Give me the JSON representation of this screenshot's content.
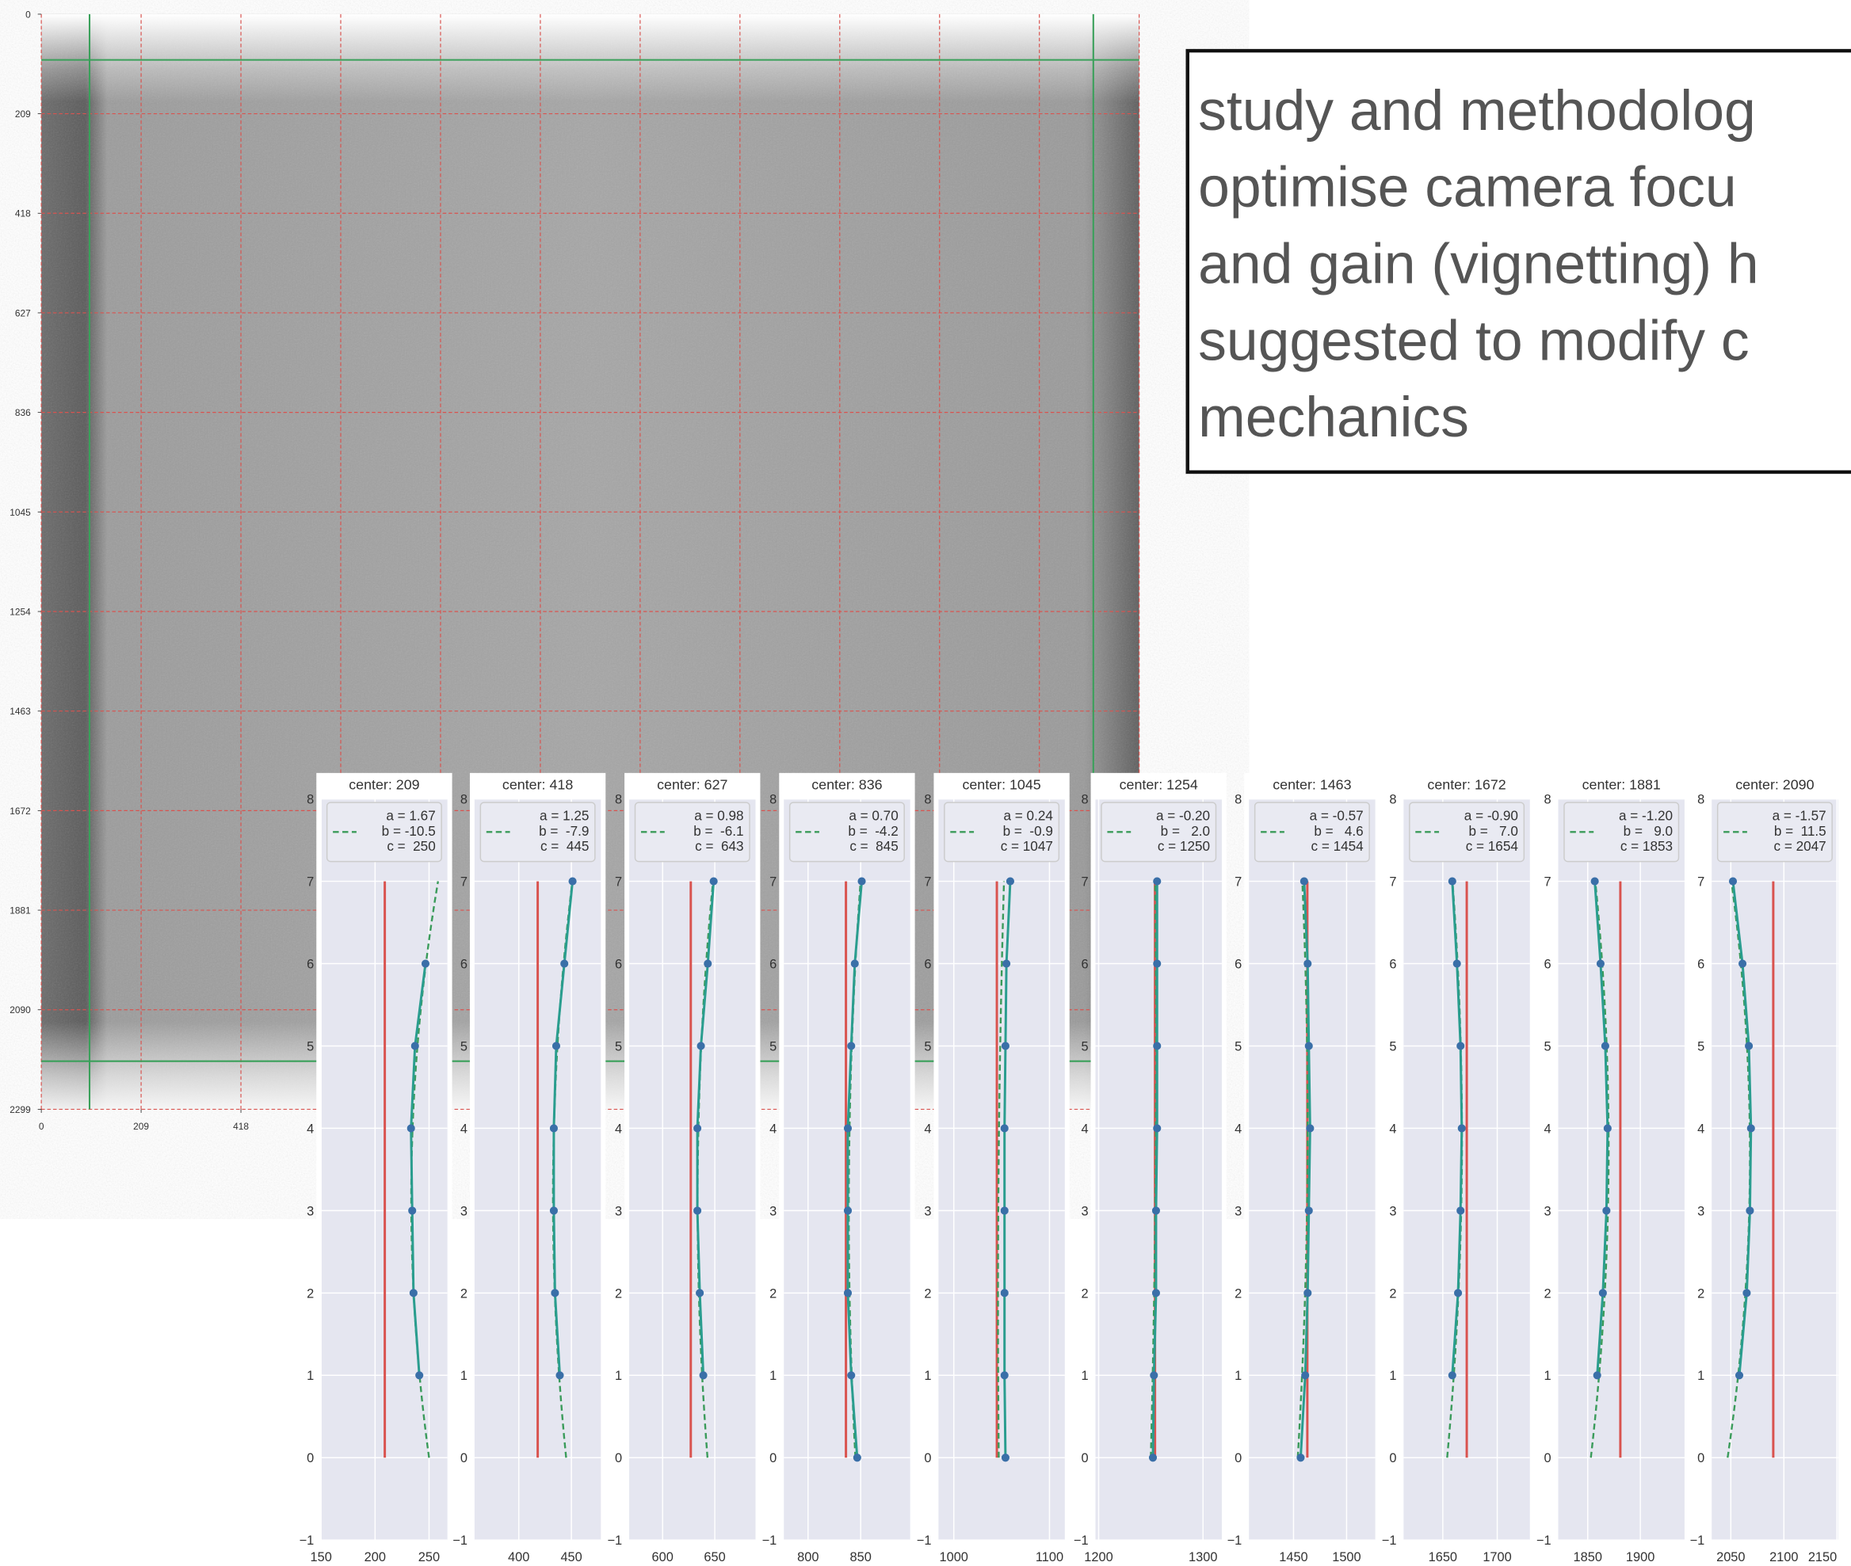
{
  "chart_data": [
    {
      "type": "image",
      "xlim": [
        0,
        2299
      ],
      "ylim": [
        0,
        2299
      ],
      "xticks": [
        0,
        209,
        418
      ],
      "yticks": [
        0,
        209,
        418,
        627,
        836,
        1045,
        1254,
        1463,
        1672,
        1881,
        2090,
        2299
      ],
      "gridlines": [
        209,
        418,
        627,
        836,
        1045,
        1254,
        1463,
        1672,
        1881,
        2090,
        2299
      ],
      "green_lines_x": [
        101,
        2203
      ],
      "green_lines_y": [
        96,
        2198
      ],
      "grid_color": "#d9534f",
      "guide_color": "#3aa05a"
    },
    {
      "type": "profile",
      "title": "center: 209",
      "center": 209,
      "y": [
        0,
        1,
        2,
        3,
        4,
        5,
        6,
        7
      ],
      "series": [
        {
          "color": "#3a6fa8",
          "line_color": "#2a9d8f",
          "values": [
            null,
            241,
            235.6,
            234.4,
            233.3,
            237,
            246.7,
            null
          ]
        }
      ],
      "fit": {
        "a": 1.67,
        "b": -10.5,
        "c": 250
      },
      "legend": [
        "a = 1.67",
        "b = -10.5",
        "c =  250"
      ],
      "xlim": [
        150,
        267
      ],
      "xticks": [
        150,
        200,
        250
      ],
      "ylim": [
        -1,
        8
      ],
      "yticks": [
        {
          "value": -1,
          "label": "−1"
        },
        0,
        1,
        2,
        3,
        4,
        5,
        6,
        7,
        8
      ]
    },
    {
      "type": "profile",
      "title": "center: 418",
      "center": 418,
      "y": [
        0,
        1,
        2,
        3,
        4,
        5,
        6,
        7
      ],
      "series": [
        {
          "color": "#3a6fa8",
          "line_color": "#2a9d8f",
          "values": [
            null,
            439,
            434.4,
            433.3,
            433.3,
            435.6,
            443.3,
            451.1
          ]
        }
      ],
      "fit": {
        "a": 1.25,
        "b": -7.9,
        "c": 445
      },
      "legend": [
        "a = 1.25",
        "b =  -7.9",
        "c =  445"
      ],
      "xlim": [
        358,
        478
      ],
      "xticks": [
        400,
        450
      ],
      "ylim": [
        -1,
        8
      ],
      "yticks": [
        {
          "value": -1,
          "label": "−1"
        },
        0,
        1,
        2,
        3,
        4,
        5,
        6,
        7,
        8
      ]
    },
    {
      "type": "profile",
      "title": "center: 627",
      "center": 627,
      "y": [
        0,
        1,
        2,
        3,
        4,
        5,
        6,
        7
      ],
      "series": [
        {
          "color": "#3a6fa8",
          "line_color": "#2a9d8f",
          "values": [
            null,
            639,
            635.6,
            633.3,
            633.3,
            636.7,
            643.3,
            648.9
          ]
        }
      ],
      "fit": {
        "a": 0.98,
        "b": -6.1,
        "c": 643
      },
      "legend": [
        "a = 0.98",
        "b =  -6.1",
        "c =  643"
      ],
      "xlim": [
        568,
        689
      ],
      "xticks": [
        600,
        650
      ],
      "ylim": [
        -1,
        8
      ],
      "yticks": [
        {
          "value": -1,
          "label": "−1"
        },
        0,
        1,
        2,
        3,
        4,
        5,
        6,
        7,
        8
      ]
    },
    {
      "type": "profile",
      "title": "center: 836",
      "center": 836,
      "y": [
        0,
        1,
        2,
        3,
        4,
        5,
        6,
        7
      ],
      "series": [
        {
          "color": "#3a6fa8",
          "line_color": "#2a9d8f",
          "values": [
            846.7,
            841,
            837.8,
            837.8,
            837.8,
            841,
            844.4,
            851
          ]
        }
      ],
      "fit": {
        "a": 0.7,
        "b": -4.2,
        "c": 845
      },
      "legend": [
        "a = 0.70",
        "b =  -4.2",
        "c =  845"
      ],
      "xlim": [
        777,
        897
      ],
      "xticks": [
        800,
        850
      ],
      "ylim": [
        -1,
        8
      ],
      "yticks": [
        {
          "value": -1,
          "label": "−1"
        },
        0,
        1,
        2,
        3,
        4,
        5,
        6,
        7,
        8
      ]
    },
    {
      "type": "profile",
      "title": "center: 1045",
      "center": 1045,
      "y": [
        0,
        1,
        2,
        3,
        4,
        5,
        6,
        7
      ],
      "series": [
        {
          "color": "#3a6fa8",
          "line_color": "#2a9d8f",
          "values": [
            1054,
            1053,
            1053,
            1053,
            1053,
            1054,
            1055,
            1059
          ]
        }
      ],
      "fit": {
        "a": 0.24,
        "b": -0.9,
        "c": 1047
      },
      "legend": [
        "a = 0.24",
        "b =  -0.9",
        "c = 1047"
      ],
      "xlim": [
        984,
        1116
      ],
      "xticks": [
        1000,
        1100
      ],
      "ylim": [
        -1,
        8
      ],
      "yticks": [
        {
          "value": -1,
          "label": "−1"
        },
        0,
        1,
        2,
        3,
        4,
        5,
        6,
        7,
        8
      ]
    },
    {
      "type": "profile",
      "title": "center: 1254",
      "center": 1254,
      "y": [
        0,
        1,
        2,
        3,
        4,
        5,
        6,
        7
      ],
      "series": [
        {
          "color": "#3a6fa8",
          "line_color": "#2a9d8f",
          "values": [
            1252,
            1253,
            1255,
            1255,
            1256,
            1256,
            1256,
            1256
          ]
        }
      ],
      "fit": {
        "a": -0.2,
        "b": 2.0,
        "c": 1250
      },
      "legend": [
        "a = -0.20",
        "b =   2.0",
        "c = 1250"
      ],
      "xlim": [
        1197,
        1318
      ],
      "xticks": [
        1200,
        1300
      ],
      "ylim": [
        -1,
        8
      ],
      "yticks": [
        {
          "value": -1,
          "label": "−1"
        },
        0,
        1,
        2,
        3,
        4,
        5,
        6,
        7,
        8
      ]
    },
    {
      "type": "profile",
      "title": "center: 1463",
      "center": 1463,
      "y": [
        0,
        1,
        2,
        3,
        4,
        5,
        6,
        7
      ],
      "series": [
        {
          "color": "#3a6fa8",
          "line_color": "#2a9d8f",
          "values": [
            1456.7,
            1461,
            1463.3,
            1464.4,
            1465.6,
            1464.4,
            1463.3,
            1460
          ]
        }
      ],
      "fit": {
        "a": -0.57,
        "b": 4.6,
        "c": 1454
      },
      "legend": [
        "a = -0.57",
        "b =   4.6",
        "c = 1454"
      ],
      "xlim": [
        1408,
        1527
      ],
      "xticks": [
        1450,
        1500
      ],
      "ylim": [
        -1,
        8
      ],
      "yticks": [
        {
          "value": -1,
          "label": "−1"
        },
        0,
        1,
        2,
        3,
        4,
        5,
        6,
        7,
        8
      ]
    },
    {
      "type": "profile",
      "title": "center: 1672",
      "center": 1672,
      "y": [
        0,
        1,
        2,
        3,
        4,
        5,
        6,
        7
      ],
      "series": [
        {
          "color": "#3a6fa8",
          "line_color": "#2a9d8f",
          "values": [
            null,
            1658.7,
            1664,
            1666.3,
            1667.4,
            1666.3,
            1663,
            1658.7
          ]
        }
      ],
      "fit": {
        "a": -0.9,
        "b": 7.0,
        "c": 1654
      },
      "legend": [
        "a = -0.90",
        "b =   7.0",
        "c = 1654"
      ],
      "xlim": [
        1614,
        1730
      ],
      "xticks": [
        1650,
        1700
      ],
      "ylim": [
        -1,
        8
      ],
      "yticks": [
        {
          "value": -1,
          "label": "−1"
        },
        0,
        1,
        2,
        3,
        4,
        5,
        6,
        7,
        8
      ]
    },
    {
      "type": "profile",
      "title": "center: 1881",
      "center": 1881,
      "y": [
        0,
        1,
        2,
        3,
        4,
        5,
        6,
        7
      ],
      "series": [
        {
          "color": "#3a6fa8",
          "line_color": "#2a9d8f",
          "values": [
            null,
            1859,
            1864.4,
            1867.8,
            1868.9,
            1866.7,
            1862.2,
            1856.7
          ]
        }
      ],
      "fit": {
        "a": -1.2,
        "b": 9.0,
        "c": 1853
      },
      "legend": [
        "a = -1.20",
        "b =   9.0",
        "c = 1853"
      ],
      "xlim": [
        1822,
        1942
      ],
      "xticks": [
        1850,
        1900
      ],
      "ylim": [
        -1,
        8
      ],
      "yticks": [
        {
          "value": -1,
          "label": "−1"
        },
        0,
        1,
        2,
        3,
        4,
        5,
        6,
        7,
        8
      ]
    },
    {
      "type": "profile",
      "title": "center: 2090",
      "center": 2090,
      "y": [
        0,
        1,
        2,
        3,
        4,
        5,
        6,
        7
      ],
      "series": [
        {
          "color": "#3a6fa8",
          "line_color": "#2a9d8f",
          "values": [
            null,
            2058,
            2065,
            2068,
            2069,
            2067,
            2061,
            2052
          ]
        }
      ],
      "fit": {
        "a": -1.57,
        "b": 11.5,
        "c": 2047
      },
      "legend": [
        "a = -1.57",
        "b =  11.5",
        "c = 2047"
      ],
      "xlim": [
        2032,
        2151
      ],
      "xticks": [
        2050,
        2100,
        2150
      ],
      "ylim": [
        -1,
        8
      ],
      "yticks": [
        {
          "value": -1,
          "label": "−1"
        },
        0,
        1,
        2,
        3,
        4,
        5,
        6,
        7,
        8
      ]
    }
  ],
  "text_box": {
    "lines": [
      "study and methodolog",
      "optimise camera focu",
      "and gain (vignetting) h",
      "suggested to modify c",
      "mechanics"
    ]
  },
  "style": {
    "center_color": "#d9534f",
    "fit_color": "#3a9b5a"
  }
}
